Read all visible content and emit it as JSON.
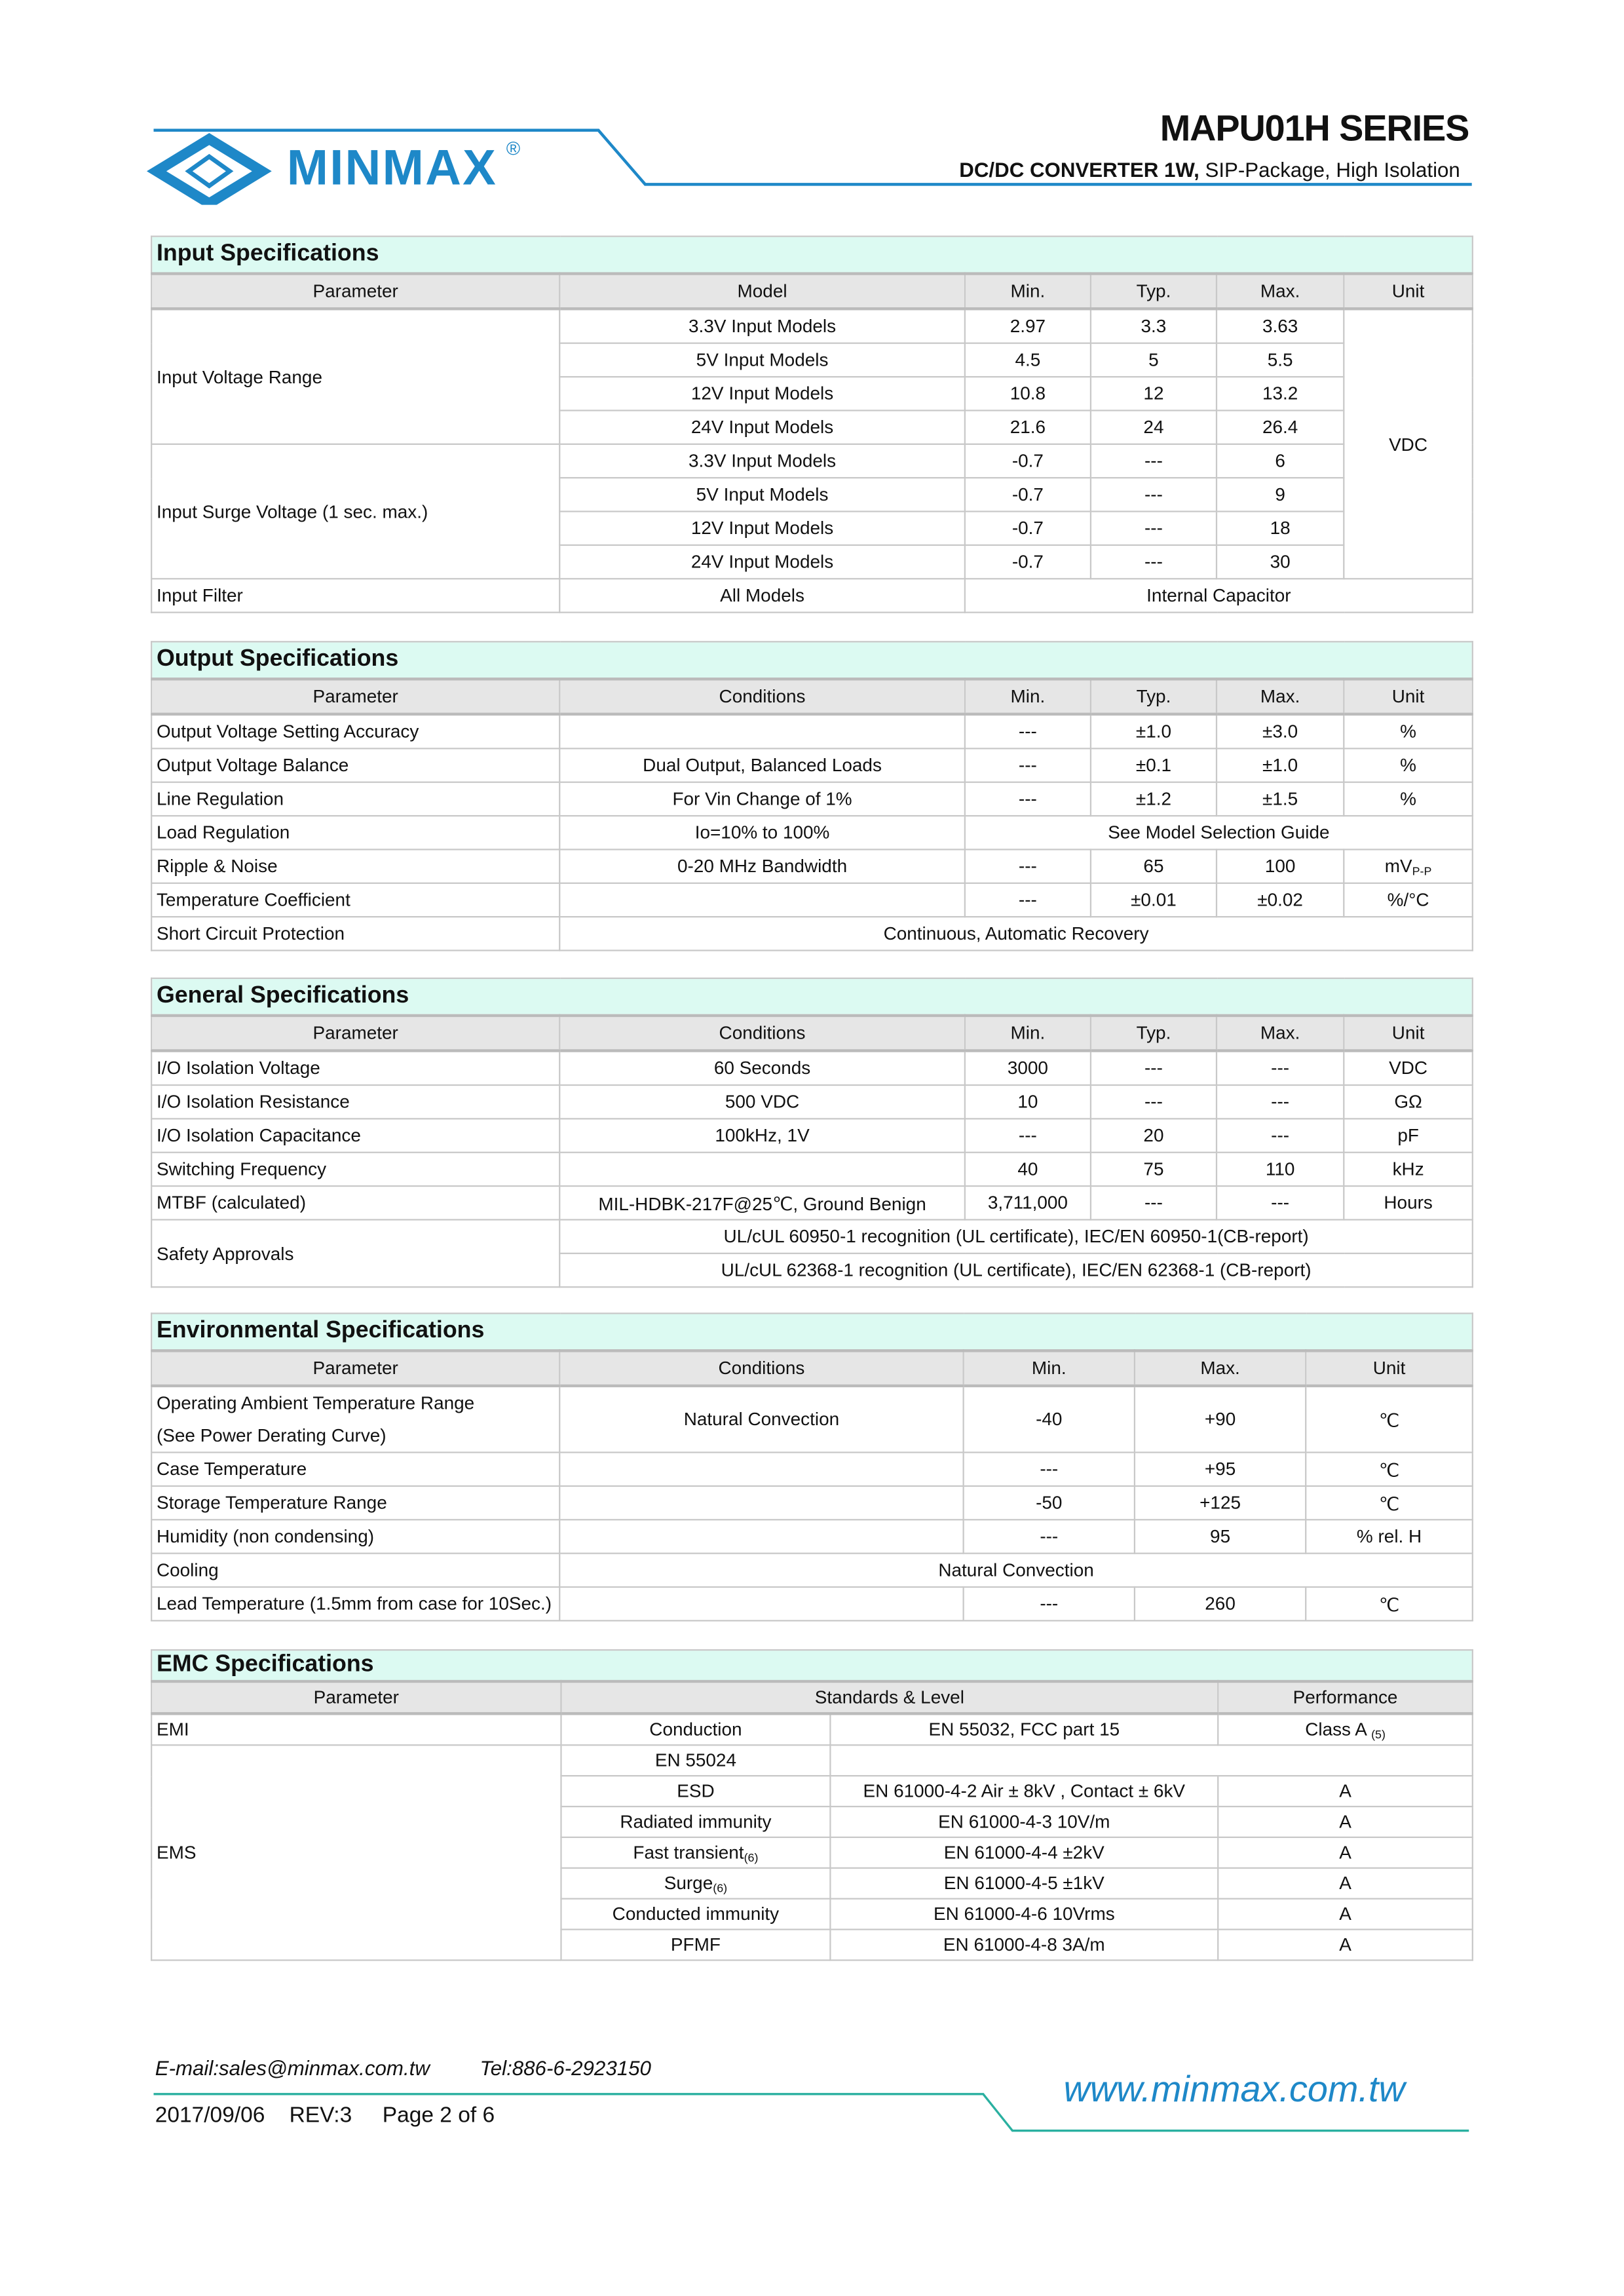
{
  "header": {
    "brand": "MINMAX",
    "registered": "®",
    "series": "MAPU01H SERIES",
    "subtitle_bold": "DC/DC CONVERTER 1W,",
    "subtitle_rest": " SIP-Package, High Isolation",
    "accent_color": "#1e88c8"
  },
  "input": {
    "title": "Input Specifications",
    "headers": [
      "Parameter",
      "Model",
      "Min.",
      "Typ.",
      "Max.",
      "Unit"
    ],
    "voltage_range": {
      "label": "Input Voltage Range",
      "rows": [
        [
          "3.3V Input Models",
          "2.97",
          "3.3",
          "3.63"
        ],
        [
          "5V Input Models",
          "4.5",
          "5",
          "5.5"
        ],
        [
          "12V Input Models",
          "10.8",
          "12",
          "13.2"
        ],
        [
          "24V Input Models",
          "21.6",
          "24",
          "26.4"
        ]
      ]
    },
    "surge": {
      "label": "Input Surge Voltage (1 sec. max.)",
      "rows": [
        [
          "3.3V Input Models",
          "-0.7",
          "---",
          "6"
        ],
        [
          "5V Input Models",
          "-0.7",
          "---",
          "9"
        ],
        [
          "12V Input Models",
          "-0.7",
          "---",
          "18"
        ],
        [
          "24V Input Models",
          "-0.7",
          "---",
          "30"
        ]
      ]
    },
    "unit": "VDC",
    "filter": {
      "label": "Input Filter",
      "model": "All Models",
      "value": "Internal Capacitor"
    }
  },
  "output": {
    "title": "Output Specifications",
    "headers": [
      "Parameter",
      "Conditions",
      "Min.",
      "Typ.",
      "Max.",
      "Unit"
    ],
    "rows": [
      [
        "Output Voltage Setting Accuracy",
        "",
        "---",
        "±1.0",
        "±3.0",
        "%"
      ],
      [
        "Output Voltage Balance",
        "Dual Output, Balanced Loads",
        "---",
        "±0.1",
        "±1.0",
        "%"
      ],
      [
        "Line Regulation",
        "For Vin Change of 1%",
        "---",
        "±1.2",
        "±1.5",
        "%"
      ]
    ],
    "load": {
      "label": "Load Regulation",
      "cond": "Io=10% to 100%",
      "value": "See Model Selection Guide"
    },
    "ripple": {
      "label": "Ripple & Noise",
      "cond": "0-20 MHz Bandwidth",
      "min": "---",
      "typ": "65",
      "max": "100",
      "unit": "mV",
      "unit_sub": "P-P"
    },
    "tempco": [
      "Temperature Coefficient",
      "",
      "---",
      "±0.01",
      "±0.02",
      "%/°C"
    ],
    "short": {
      "label": "Short Circuit Protection",
      "value": "Continuous, Automatic Recovery"
    }
  },
  "general": {
    "title": "General Specifications",
    "headers": [
      "Parameter",
      "Conditions",
      "Min.",
      "Typ.",
      "Max.",
      "Unit"
    ],
    "rows": [
      [
        "I/O Isolation Voltage",
        "60 Seconds",
        "3000",
        "---",
        "---",
        "VDC"
      ],
      [
        "I/O Isolation Resistance",
        "500 VDC",
        "10",
        "---",
        "---",
        "GΩ"
      ],
      [
        "I/O Isolation Capacitance",
        "100kHz, 1V",
        "---",
        "20",
        "---",
        "pF"
      ],
      [
        "Switching Frequency",
        "",
        "40",
        "75",
        "110",
        "kHz"
      ],
      [
        "MTBF (calculated)",
        "MIL-HDBK-217F@25℃, Ground Benign",
        "3,711,000",
        "---",
        "---",
        "Hours"
      ]
    ],
    "safety": {
      "label": "Safety Approvals",
      "values": [
        "UL/cUL 60950-1 recognition (UL certificate), IEC/EN 60950-1(CB-report)",
        "UL/cUL 62368-1 recognition (UL certificate), IEC/EN 62368-1 (CB-report)"
      ]
    }
  },
  "environmental": {
    "title": "Environmental Specifications",
    "headers": [
      "Parameter",
      "Conditions",
      "Min.",
      "Max.",
      "Unit"
    ],
    "operating": {
      "label_1": "Operating Ambient Temperature Range",
      "label_2": "(See Power Derating Curve)",
      "cond": "Natural Convection",
      "min": "-40",
      "max": "+90",
      "unit": "℃"
    },
    "rows": [
      [
        "Case Temperature",
        "",
        "---",
        "+95",
        "℃"
      ],
      [
        "Storage Temperature Range",
        "",
        "-50",
        "+125",
        "℃"
      ],
      [
        "Humidity (non condensing)",
        "",
        "---",
        "95",
        "% rel. H"
      ]
    ],
    "cooling": {
      "label": "Cooling",
      "value": "Natural Convection"
    },
    "lead": [
      "Lead Temperature (1.5mm from case for 10Sec.)",
      "",
      "---",
      "260",
      "℃"
    ]
  },
  "emc": {
    "title": "EMC Specifications",
    "headers": [
      "Parameter",
      "Standards & Level",
      "Performance"
    ],
    "emi": {
      "label": "EMI",
      "type": "Conduction",
      "standard": "EN 55032, FCC part 15",
      "perf": "Class A",
      "note": "(5)"
    },
    "ems": {
      "label": "EMS",
      "group": "EN 55024",
      "rows": [
        {
          "type": "ESD",
          "note": "",
          "standard": "EN 61000-4-2 Air ± 8kV , Contact ± 6kV",
          "perf": "A"
        },
        {
          "type": "Radiated immunity",
          "note": "",
          "standard": "EN 61000-4-3 10V/m",
          "perf": "A"
        },
        {
          "type": "Fast transient",
          "note": "(6)",
          "standard": "EN 61000-4-4 ±2kV",
          "perf": "A"
        },
        {
          "type": "Surge",
          "note": "(6)",
          "standard": "EN 61000-4-5 ±1kV",
          "perf": "A"
        },
        {
          "type": "Conducted immunity",
          "note": "",
          "standard": "EN 61000-4-6 10Vrms",
          "perf": "A"
        },
        {
          "type": "PFMF",
          "note": "",
          "standard": "EN 61000-4-8 3A/m",
          "perf": "A"
        }
      ]
    }
  },
  "footer": {
    "email": "E-mail:sales@minmax.com.tw",
    "tel": "Tel:886-6-2923150",
    "date_rev_page": "2017/09/06    REV:3     Page 2 of 6",
    "website": "www.minmax.com.tw"
  }
}
